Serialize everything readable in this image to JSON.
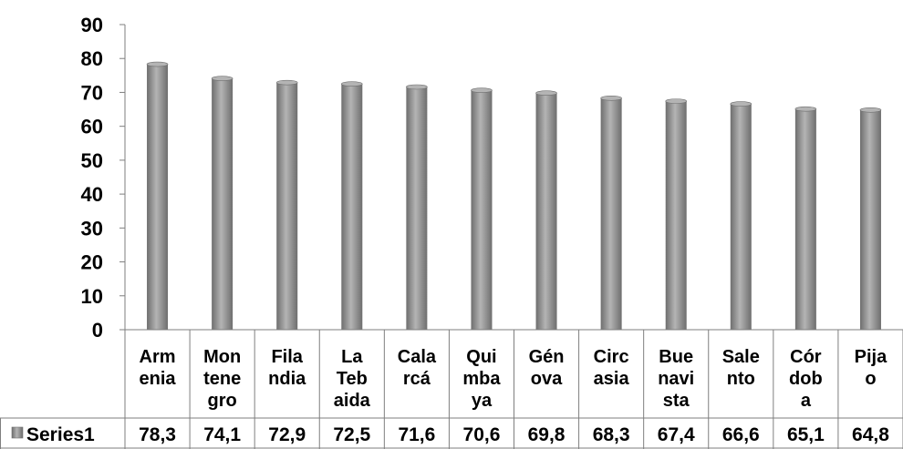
{
  "chart_data": {
    "type": "bar",
    "categories": [
      [
        "Arm",
        "enia"
      ],
      [
        "Mon",
        "tene",
        "gro"
      ],
      [
        "Fila",
        "ndia"
      ],
      [
        "La",
        "Teb",
        "aida"
      ],
      [
        "Cala",
        "rcá"
      ],
      [
        "Qui",
        "mba",
        "ya"
      ],
      [
        "Gén",
        "ova"
      ],
      [
        "Circ",
        "asia"
      ],
      [
        "Bue",
        "navi",
        "sta"
      ],
      [
        "Sale",
        "nto"
      ],
      [
        "Cór",
        "dob",
        "a"
      ],
      [
        "Pija",
        "o"
      ]
    ],
    "series": [
      {
        "name": "Series1",
        "values": [
          78.3,
          74.1,
          72.9,
          72.5,
          71.6,
          70.6,
          69.8,
          68.3,
          67.4,
          66.6,
          65.1,
          64.8
        ],
        "labels": [
          "78,3",
          "74,1",
          "72,9",
          "72,5",
          "71,6",
          "70,6",
          "69,8",
          "68,3",
          "67,4",
          "66,6",
          "65,1",
          "64,8"
        ]
      }
    ],
    "yticks": [
      "0",
      "10",
      "20",
      "30",
      "40",
      "50",
      "60",
      "70",
      "80",
      "90"
    ],
    "ylim": [
      0,
      90
    ],
    "grid": false,
    "legend": "data-table-left",
    "colors": {
      "bar": "#8c8c8c",
      "bar_light": "#b4b4b4",
      "bar_dark": "#6e6e6e",
      "axis": "#7f7f7f"
    }
  }
}
